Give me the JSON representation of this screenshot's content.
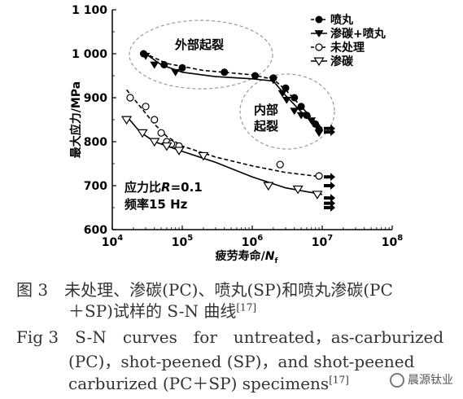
{
  "chart_data": {
    "type": "scatter",
    "title": "",
    "xlabel_prefix": "疲劳寿命/",
    "xlabel_var": "N",
    "xlabel_sub": "f",
    "ylabel": "最大应力/MPa",
    "x_scale": "log",
    "xlim": [
      10000,
      100000000
    ],
    "ylim": [
      600,
      1100
    ],
    "x_ticks": [
      {
        "value": 10000,
        "base": "10",
        "exp": "4"
      },
      {
        "value": 100000,
        "base": "10",
        "exp": "5"
      },
      {
        "value": 1000000,
        "base": "10",
        "exp": "6"
      },
      {
        "value": 10000000,
        "base": "10",
        "exp": "7"
      },
      {
        "value": 100000000,
        "base": "10",
        "exp": "8"
      }
    ],
    "y_ticks": [
      {
        "value": 600,
        "label": "600"
      },
      {
        "value": 700,
        "label": "700"
      },
      {
        "value": 800,
        "label": "800"
      },
      {
        "value": 900,
        "label": "900"
      },
      {
        "value": 1000,
        "label": "1 000"
      },
      {
        "value": 1100,
        "label": "1 100"
      }
    ],
    "legend_position": "top-right",
    "grid": false,
    "series": [
      {
        "name": "喷丸",
        "marker": "filled-circle",
        "line": "dashed",
        "points": [
          [
            28000,
            1000
          ],
          [
            55000,
            975
          ],
          [
            100000,
            968
          ],
          [
            400000,
            958
          ],
          [
            1100000,
            950
          ],
          [
            2000000,
            945
          ],
          [
            3000000,
            922
          ],
          [
            4000000,
            900
          ],
          [
            5000000,
            880
          ],
          [
            6000000,
            860
          ],
          [
            8000000,
            840
          ],
          [
            9000000,
            828
          ]
        ],
        "curve": [
          [
            28000,
            1002
          ],
          [
            60000,
            978
          ],
          [
            200000,
            962
          ],
          [
            1000000,
            952
          ],
          [
            2000000,
            942
          ],
          [
            3000000,
            918
          ],
          [
            5000000,
            880
          ],
          [
            8000000,
            845
          ],
          [
            10000000,
            832
          ]
        ],
        "runouts": [
          [
            10000000,
            830
          ]
        ]
      },
      {
        "name": "渗碳+喷丸",
        "marker": "filled-triangle-down",
        "line": "solid",
        "points": [
          [
            30000,
            995
          ],
          [
            40000,
            975
          ],
          [
            80000,
            958
          ],
          [
            2000000,
            940
          ],
          [
            2700000,
            910
          ],
          [
            3100000,
            895
          ],
          [
            4000000,
            870
          ],
          [
            5000000,
            860
          ],
          [
            7000000,
            848
          ],
          [
            9000000,
            820
          ]
        ],
        "curve": [
          [
            30000,
            1000
          ],
          [
            50000,
            975
          ],
          [
            100000,
            958
          ],
          [
            300000,
            948
          ],
          [
            1000000,
            943
          ],
          [
            2000000,
            938
          ],
          [
            3000000,
            905
          ],
          [
            5000000,
            868
          ],
          [
            8000000,
            836
          ],
          [
            10000000,
            822
          ]
        ],
        "runouts": [
          [
            10000000,
            822
          ]
        ]
      },
      {
        "name": "未处理",
        "marker": "open-circle",
        "line": "dashed",
        "points": [
          [
            18000,
            900
          ],
          [
            30000,
            880
          ],
          [
            40000,
            850
          ],
          [
            50000,
            820
          ],
          [
            60000,
            800
          ],
          [
            70000,
            795
          ],
          [
            90000,
            790
          ],
          [
            2500000,
            748
          ],
          [
            9000000,
            722
          ]
        ],
        "curve": [
          [
            16000,
            918
          ],
          [
            25000,
            880
          ],
          [
            40000,
            840
          ],
          [
            60000,
            812
          ],
          [
            100000,
            790
          ],
          [
            300000,
            765
          ],
          [
            1000000,
            745
          ],
          [
            3000000,
            730
          ],
          [
            10000000,
            720
          ]
        ],
        "runouts": [
          [
            10000000,
            720
          ],
          [
            10000000,
            700
          ]
        ]
      },
      {
        "name": "渗碳",
        "marker": "open-triangle-down",
        "line": "solid",
        "points": [
          [
            16000,
            850
          ],
          [
            27000,
            820
          ],
          [
            40000,
            800
          ],
          [
            60000,
            790
          ],
          [
            90000,
            780
          ],
          [
            200000,
            768
          ],
          [
            1700000,
            700
          ],
          [
            4500000,
            692
          ],
          [
            8500000,
            680
          ]
        ],
        "curve": [
          [
            16000,
            858
          ],
          [
            25000,
            822
          ],
          [
            40000,
            800
          ],
          [
            100000,
            778
          ],
          [
            300000,
            753
          ],
          [
            1000000,
            720
          ],
          [
            3000000,
            695
          ],
          [
            10000000,
            680
          ]
        ],
        "runouts": [
          [
            10000000,
            672
          ],
          [
            10000000,
            660
          ],
          [
            10000000,
            650
          ]
        ]
      }
    ],
    "annotations": [
      {
        "text_lines": [
          "外部起裂"
        ]
      },
      {
        "text_lines": [
          "内部",
          "起裂"
        ]
      },
      {
        "text_prefix": "应力比",
        "text_var": "R",
        "text_suffix": "=0.1"
      },
      {
        "text": "频率15 Hz"
      }
    ]
  },
  "caption": {
    "cn_line1": "图 3　未处理、渗碳(PC)、喷丸(SP)和喷丸渗碳(PC",
    "cn_line2": "＋SP)试样的 S-N 曲线",
    "cn_ref": "[17]",
    "en_line1": "Fig 3　S-N　curves　for　untreated，as-carburized",
    "en_line2": "(PC)，shot-peened (SP)，and shot-peened",
    "en_line3": "carburized (PC＋SP) specimens",
    "en_ref": "[17]"
  },
  "watermark": {
    "text": "晨源钛业"
  }
}
